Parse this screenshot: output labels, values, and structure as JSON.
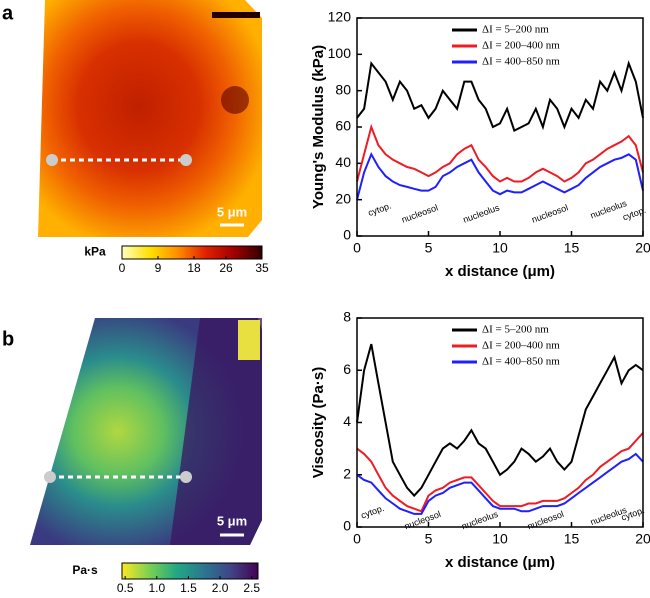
{
  "panels": [
    "a",
    "b"
  ],
  "scale_bar": "5 μm",
  "colorbars": [
    {
      "label": "kPa",
      "lim": [
        0,
        35
      ],
      "ticks": [
        0,
        9,
        18,
        26,
        35
      ],
      "colors": [
        "#ffffc0",
        "#ffe000",
        "#ff8c00",
        "#e02000",
        "#a00000",
        "#300000"
      ]
    },
    {
      "label": "Pa·s",
      "lim": [
        0.45,
        2.6
      ],
      "ticks": [
        0.5,
        {
          "value": 1,
          "label": "1.0"
        },
        1.5,
        {
          "value": 2,
          "label": "2.0"
        },
        2.5
      ],
      "colors": [
        "#fde725",
        "#7ad151",
        "#22a884",
        "#2a788e",
        "#414487",
        "#440154"
      ]
    }
  ],
  "chart_data": [
    {
      "type": "line",
      "y_label": "Young's Modulus (kPa)",
      "x_label": "x distance (μm)",
      "x": [
        0,
        0.5,
        1,
        1.5,
        2,
        2.5,
        3,
        3.5,
        4,
        4.5,
        5,
        5.5,
        6,
        6.5,
        7,
        7.5,
        8,
        8.5,
        9,
        9.5,
        10,
        10.5,
        11,
        11.5,
        12,
        12.5,
        13,
        13.5,
        14,
        14.5,
        15,
        15.5,
        16,
        16.5,
        17,
        17.5,
        18,
        18.5,
        19,
        19.5,
        20
      ],
      "series": [
        {
          "name": "ΔI = 5–200 nm",
          "color": "#000000",
          "values": [
            65,
            70,
            95,
            90,
            85,
            75,
            85,
            80,
            70,
            72,
            65,
            70,
            80,
            75,
            70,
            85,
            85,
            75,
            70,
            60,
            62,
            70,
            58,
            60,
            62,
            70,
            60,
            75,
            70,
            60,
            70,
            65,
            75,
            70,
            85,
            80,
            90,
            80,
            95,
            85,
            65
          ]
        },
        {
          "name": "ΔI = 200–400 nm",
          "color": "#ee1c24",
          "values": [
            30,
            45,
            60,
            50,
            45,
            42,
            40,
            38,
            37,
            35,
            33,
            35,
            38,
            40,
            45,
            48,
            50,
            42,
            38,
            33,
            30,
            32,
            30,
            30,
            32,
            35,
            37,
            35,
            33,
            30,
            32,
            35,
            40,
            42,
            45,
            48,
            50,
            52,
            55,
            50,
            35
          ]
        },
        {
          "name": "ΔI = 400–850 nm",
          "color": "#1f1fff",
          "values": [
            20,
            35,
            45,
            38,
            33,
            30,
            28,
            27,
            26,
            25,
            25,
            27,
            33,
            35,
            38,
            40,
            42,
            35,
            30,
            25,
            23,
            25,
            24,
            24,
            26,
            28,
            30,
            28,
            26,
            24,
            26,
            28,
            32,
            35,
            38,
            40,
            42,
            43,
            45,
            42,
            25
          ]
        }
      ],
      "xlim": [
        0,
        20
      ],
      "xticks": [
        0,
        5,
        10,
        15,
        20
      ],
      "ylim": [
        0,
        120
      ],
      "yticks": [
        0,
        20,
        40,
        60,
        80,
        100,
        120
      ],
      "legend": "top-right",
      "annotations": [
        "cytop.",
        "nucleosol",
        "nucleolus",
        "nucleosol",
        "nucleolus",
        "cytop."
      ]
    },
    {
      "type": "line",
      "y_label": "Viscosity (Pa·s)",
      "x_label": "x distance (μm)",
      "x": [
        0,
        0.5,
        1,
        1.5,
        2,
        2.5,
        3,
        3.5,
        4,
        4.5,
        5,
        5.5,
        6,
        6.5,
        7,
        7.5,
        8,
        8.5,
        9,
        9.5,
        10,
        10.5,
        11,
        11.5,
        12,
        12.5,
        13,
        13.5,
        14,
        14.5,
        15,
        15.5,
        16,
        16.5,
        17,
        17.5,
        18,
        18.5,
        19,
        19.5,
        20
      ],
      "series": [
        {
          "name": "ΔI = 5–200 nm",
          "color": "#000000",
          "values": [
            4,
            6,
            7,
            5.5,
            4,
            2.5,
            2,
            1.5,
            1.2,
            1.5,
            2,
            2.5,
            3,
            3.2,
            3,
            3.3,
            3.7,
            3.2,
            3,
            2.5,
            2,
            2.2,
            2.5,
            3,
            2.8,
            2.5,
            2.7,
            3,
            2.5,
            2.2,
            2.5,
            3.5,
            4.5,
            5,
            5.5,
            6,
            6.5,
            5.5,
            6,
            6.2,
            6
          ]
        },
        {
          "name": "ΔI = 200–400 nm",
          "color": "#ee1c24",
          "values": [
            3,
            2.8,
            2.5,
            2,
            1.5,
            1.2,
            1,
            0.8,
            0.7,
            0.6,
            1.2,
            1.4,
            1.5,
            1.7,
            1.8,
            1.9,
            1.9,
            1.6,
            1.3,
            1,
            0.8,
            0.8,
            0.8,
            0.8,
            0.9,
            0.9,
            1,
            1,
            1,
            1.1,
            1.3,
            1.5,
            1.8,
            2,
            2.3,
            2.5,
            2.7,
            2.9,
            3,
            3.3,
            3.6
          ]
        },
        {
          "name": "ΔI = 400–850 nm",
          "color": "#1f1fff",
          "values": [
            2,
            1.8,
            1.7,
            1.4,
            1.1,
            0.9,
            0.7,
            0.6,
            0.5,
            0.5,
            1,
            1.2,
            1.3,
            1.5,
            1.6,
            1.7,
            1.7,
            1.4,
            1.1,
            0.8,
            0.7,
            0.7,
            0.7,
            0.6,
            0.6,
            0.7,
            0.8,
            0.8,
            0.8,
            0.9,
            1.1,
            1.3,
            1.5,
            1.7,
            1.9,
            2.1,
            2.3,
            2.5,
            2.6,
            2.8,
            2.5
          ]
        }
      ],
      "xlim": [
        0,
        20
      ],
      "xticks": [
        0,
        5,
        10,
        15,
        20
      ],
      "ylim": [
        0,
        8
      ],
      "yticks": [
        0,
        2,
        4,
        6,
        8
      ],
      "legend": "top-right",
      "annotations": [
        "cytop.",
        "nucleosol",
        "nucleolus",
        "nucleosol",
        "nucleolus",
        "cytop."
      ]
    }
  ]
}
